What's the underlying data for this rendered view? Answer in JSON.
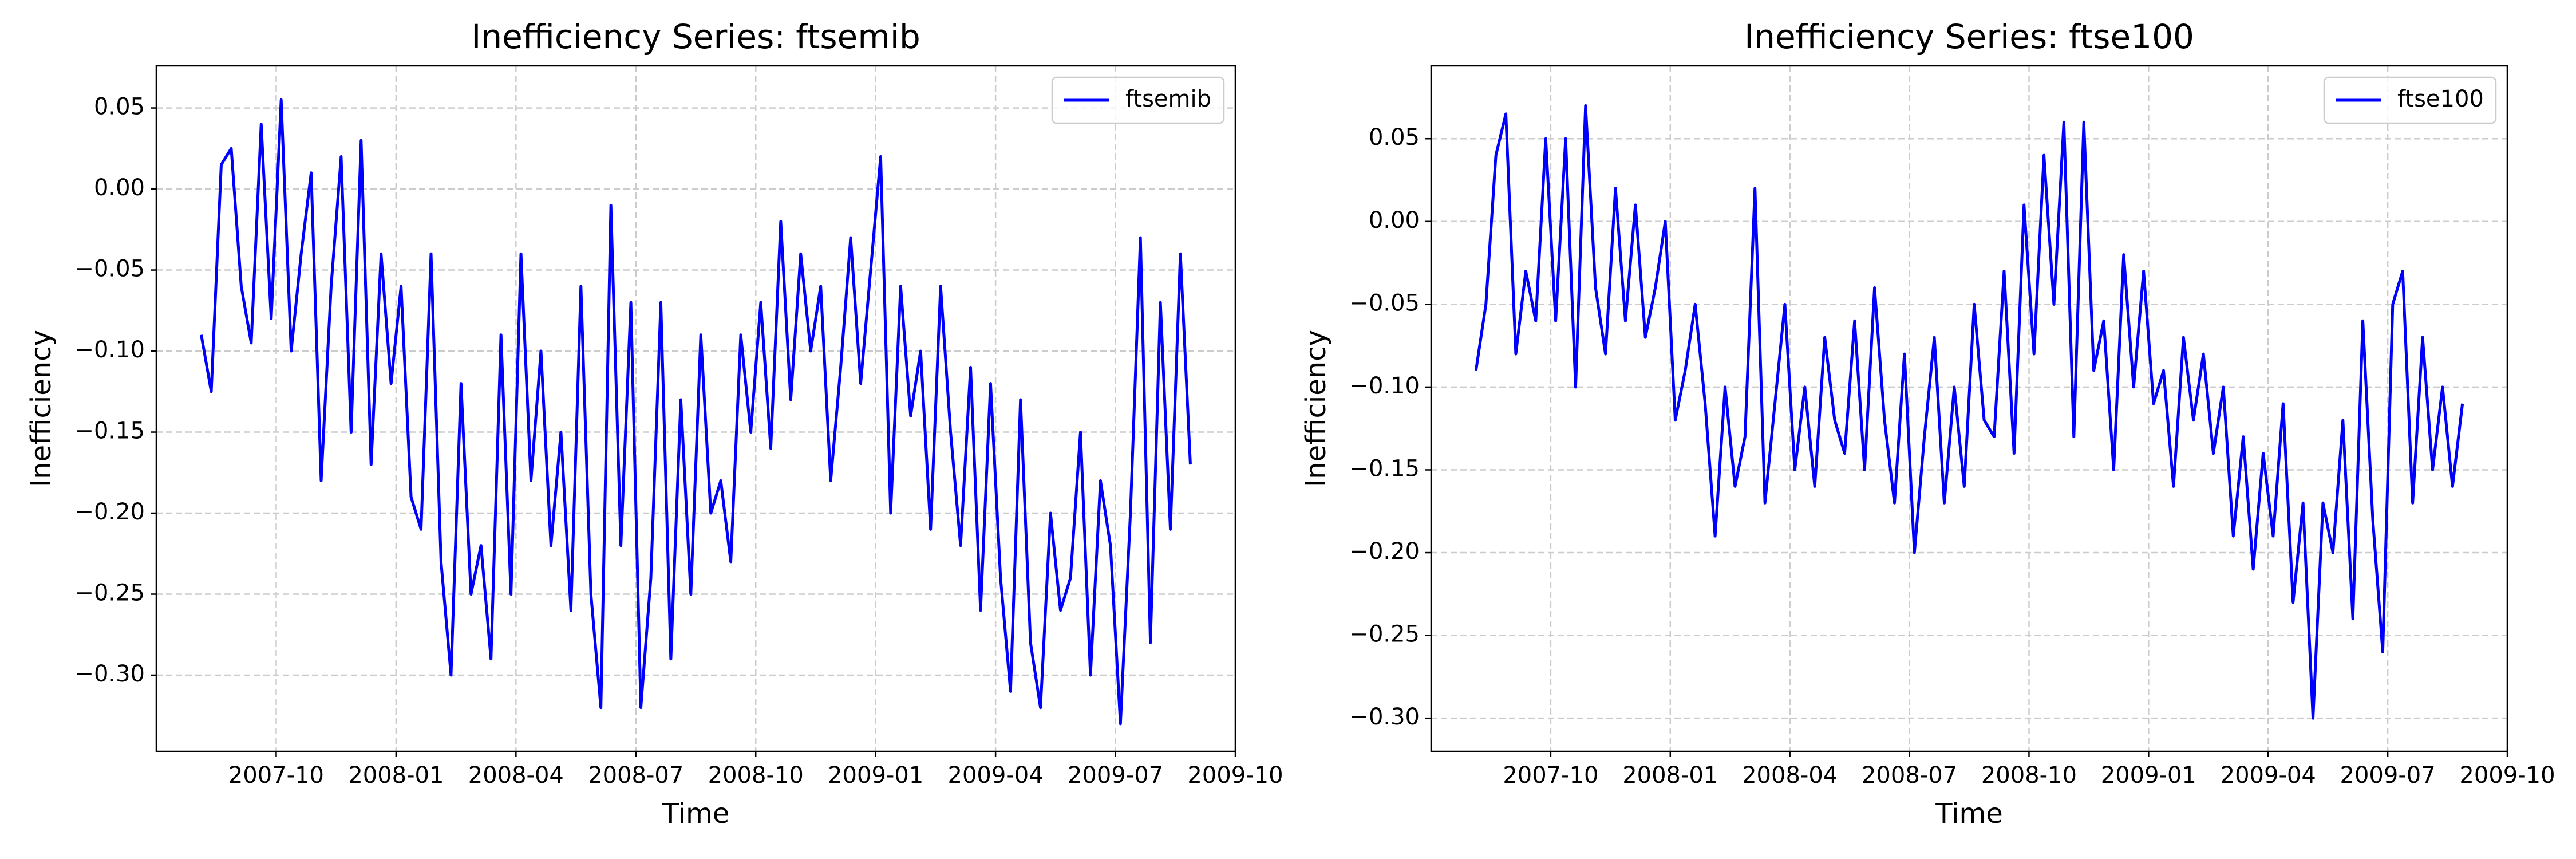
{
  "chart_data": [
    {
      "type": "line",
      "title": "Inefficiency Series: ftsemib",
      "xlabel": "Time",
      "ylabel": "Inefficiency",
      "x": [
        "2007-08",
        "2007-08",
        "2007-08",
        "2007-08",
        "2007-09",
        "2007-09",
        "2007-09",
        "2007-09",
        "2007-10",
        "2007-10",
        "2007-10",
        "2007-10",
        "2007-11",
        "2007-11",
        "2007-11",
        "2007-11",
        "2007-12",
        "2007-12",
        "2007-12",
        "2007-12",
        "2008-01",
        "2008-01",
        "2008-01",
        "2008-01",
        "2008-02",
        "2008-02",
        "2008-02",
        "2008-02",
        "2008-03",
        "2008-03",
        "2008-03",
        "2008-03",
        "2008-04",
        "2008-04",
        "2008-04",
        "2008-04",
        "2008-05",
        "2008-05",
        "2008-05",
        "2008-05",
        "2008-06",
        "2008-06",
        "2008-06",
        "2008-06",
        "2008-07",
        "2008-07",
        "2008-07",
        "2008-07",
        "2008-08",
        "2008-08",
        "2008-08",
        "2008-08",
        "2008-09",
        "2008-09",
        "2008-09",
        "2008-09",
        "2008-10",
        "2008-10",
        "2008-10",
        "2008-10",
        "2008-11",
        "2008-11",
        "2008-11",
        "2008-11",
        "2008-12",
        "2008-12",
        "2008-12",
        "2008-12",
        "2009-01",
        "2009-01",
        "2009-01",
        "2009-01",
        "2009-02",
        "2009-02",
        "2009-02",
        "2009-02",
        "2009-03",
        "2009-03",
        "2009-03",
        "2009-03",
        "2009-04",
        "2009-04",
        "2009-04",
        "2009-04",
        "2009-05",
        "2009-05",
        "2009-05",
        "2009-05",
        "2009-06",
        "2009-06",
        "2009-06",
        "2009-06",
        "2009-07",
        "2009-07",
        "2009-07",
        "2009-07",
        "2009-08",
        "2009-08",
        "2009-08",
        "2009-08"
      ],
      "series": [
        {
          "name": "ftsemib",
          "color": "blue",
          "values": [
            -0.09,
            -0.125,
            0.015,
            0.025,
            -0.06,
            -0.095,
            0.04,
            -0.08,
            0.055,
            -0.1,
            -0.04,
            0.01,
            -0.18,
            -0.06,
            0.02,
            -0.15,
            0.03,
            -0.17,
            -0.04,
            -0.12,
            -0.06,
            -0.19,
            -0.21,
            -0.04,
            -0.23,
            -0.3,
            -0.12,
            -0.25,
            -0.22,
            -0.29,
            -0.09,
            -0.25,
            -0.04,
            -0.18,
            -0.1,
            -0.22,
            -0.15,
            -0.26,
            -0.06,
            -0.25,
            -0.32,
            -0.01,
            -0.22,
            -0.07,
            -0.32,
            -0.24,
            -0.07,
            -0.29,
            -0.13,
            -0.25,
            -0.09,
            -0.2,
            -0.18,
            -0.23,
            -0.09,
            -0.15,
            -0.07,
            -0.16,
            -0.02,
            -0.13,
            -0.04,
            -0.1,
            -0.06,
            -0.18,
            -0.11,
            -0.03,
            -0.12,
            -0.05,
            0.02,
            -0.2,
            -0.06,
            -0.14,
            -0.1,
            -0.21,
            -0.06,
            -0.15,
            -0.22,
            -0.11,
            -0.26,
            -0.12,
            -0.24,
            -0.31,
            -0.13,
            -0.28,
            -0.32,
            -0.2,
            -0.26,
            -0.24,
            -0.15,
            -0.3,
            -0.18,
            -0.22,
            -0.33,
            -0.2,
            -0.03,
            -0.28,
            -0.07,
            -0.21,
            -0.04,
            -0.17
          ]
        }
      ],
      "xlim": [
        "2007-07",
        "2009-10"
      ],
      "xticks": [
        "2007-10",
        "2008-01",
        "2008-04",
        "2008-07",
        "2008-10",
        "2009-01",
        "2009-04",
        "2009-07",
        "2009-10"
      ],
      "ylim": [
        -0.347,
        0.076
      ],
      "yticks": [
        0.05,
        {
          "value": 0,
          "label": "0.00"
        },
        {
          "value": -0.05,
          "label": "−0.05"
        },
        {
          "value": -0.1,
          "label": "−0.10"
        },
        {
          "value": -0.15,
          "label": "−0.15"
        },
        {
          "value": -0.2,
          "label": "−0.20"
        },
        {
          "value": -0.25,
          "label": "−0.25"
        },
        {
          "value": -0.3,
          "label": "−0.30"
        }
      ],
      "grid": true,
      "legend": "upper right"
    },
    {
      "type": "line",
      "title": "Inefficiency Series: ftse100",
      "xlabel": "Time",
      "ylabel": "Inefficiency",
      "x": [
        "2007-08",
        "2007-08",
        "2007-08",
        "2007-08",
        "2007-09",
        "2007-09",
        "2007-09",
        "2007-09",
        "2007-10",
        "2007-10",
        "2007-10",
        "2007-10",
        "2007-11",
        "2007-11",
        "2007-11",
        "2007-11",
        "2007-12",
        "2007-12",
        "2007-12",
        "2007-12",
        "2008-01",
        "2008-01",
        "2008-01",
        "2008-01",
        "2008-02",
        "2008-02",
        "2008-02",
        "2008-02",
        "2008-03",
        "2008-03",
        "2008-03",
        "2008-03",
        "2008-04",
        "2008-04",
        "2008-04",
        "2008-04",
        "2008-05",
        "2008-05",
        "2008-05",
        "2008-05",
        "2008-06",
        "2008-06",
        "2008-06",
        "2008-06",
        "2008-07",
        "2008-07",
        "2008-07",
        "2008-07",
        "2008-08",
        "2008-08",
        "2008-08",
        "2008-08",
        "2008-09",
        "2008-09",
        "2008-09",
        "2008-09",
        "2008-10",
        "2008-10",
        "2008-10",
        "2008-10",
        "2008-11",
        "2008-11",
        "2008-11",
        "2008-11",
        "2008-12",
        "2008-12",
        "2008-12",
        "2008-12",
        "2009-01",
        "2009-01",
        "2009-01",
        "2009-01",
        "2009-02",
        "2009-02",
        "2009-02",
        "2009-02",
        "2009-03",
        "2009-03",
        "2009-03",
        "2009-03",
        "2009-04",
        "2009-04",
        "2009-04",
        "2009-04",
        "2009-05",
        "2009-05",
        "2009-05",
        "2009-05",
        "2009-06",
        "2009-06",
        "2009-06",
        "2009-06",
        "2009-07",
        "2009-07",
        "2009-07",
        "2009-07",
        "2009-08",
        "2009-08",
        "2009-08",
        "2009-08"
      ],
      "series": [
        {
          "name": "ftse100",
          "color": "blue",
          "values": [
            -0.09,
            -0.05,
            0.04,
            0.065,
            -0.08,
            -0.03,
            -0.06,
            0.05,
            -0.06,
            0.05,
            -0.1,
            0.07,
            -0.04,
            -0.08,
            0.02,
            -0.06,
            0.01,
            -0.07,
            -0.04,
            0.0,
            -0.12,
            -0.09,
            -0.05,
            -0.11,
            -0.19,
            -0.1,
            -0.16,
            -0.13,
            0.02,
            -0.17,
            -0.11,
            -0.05,
            -0.15,
            -0.1,
            -0.16,
            -0.07,
            -0.12,
            -0.14,
            -0.06,
            -0.15,
            -0.04,
            -0.12,
            -0.17,
            -0.08,
            -0.2,
            -0.13,
            -0.07,
            -0.17,
            -0.1,
            -0.16,
            -0.05,
            -0.12,
            -0.13,
            -0.03,
            -0.14,
            0.01,
            -0.08,
            0.04,
            -0.05,
            0.06,
            -0.13,
            0.06,
            -0.09,
            -0.06,
            -0.15,
            -0.02,
            -0.1,
            -0.03,
            -0.11,
            -0.09,
            -0.16,
            -0.07,
            -0.12,
            -0.08,
            -0.14,
            -0.1,
            -0.19,
            -0.13,
            -0.21,
            -0.14,
            -0.19,
            -0.11,
            -0.23,
            -0.17,
            -0.3,
            -0.17,
            -0.2,
            -0.12,
            -0.24,
            -0.06,
            -0.18,
            -0.26,
            -0.05,
            -0.03,
            -0.17,
            -0.07,
            -0.15,
            -0.1,
            -0.16,
            -0.11
          ]
        }
      ],
      "xlim": [
        "2007-07",
        "2009-10"
      ],
      "xticks": [
        "2007-10",
        "2008-01",
        "2008-04",
        "2008-07",
        "2008-10",
        "2009-01",
        "2009-04",
        "2009-07",
        "2009-10"
      ],
      "ylim": [
        -0.32,
        0.094
      ],
      "yticks": [
        0.05,
        {
          "value": 0,
          "label": "0.00"
        },
        {
          "value": -0.05,
          "label": "−0.05"
        },
        {
          "value": -0.1,
          "label": "−0.10"
        },
        {
          "value": -0.15,
          "label": "−0.15"
        },
        {
          "value": -0.2,
          "label": "−0.20"
        },
        {
          "value": -0.25,
          "label": "−0.25"
        },
        {
          "value": -0.3,
          "label": "−0.30"
        }
      ],
      "grid": true,
      "legend": "upper right"
    }
  ]
}
